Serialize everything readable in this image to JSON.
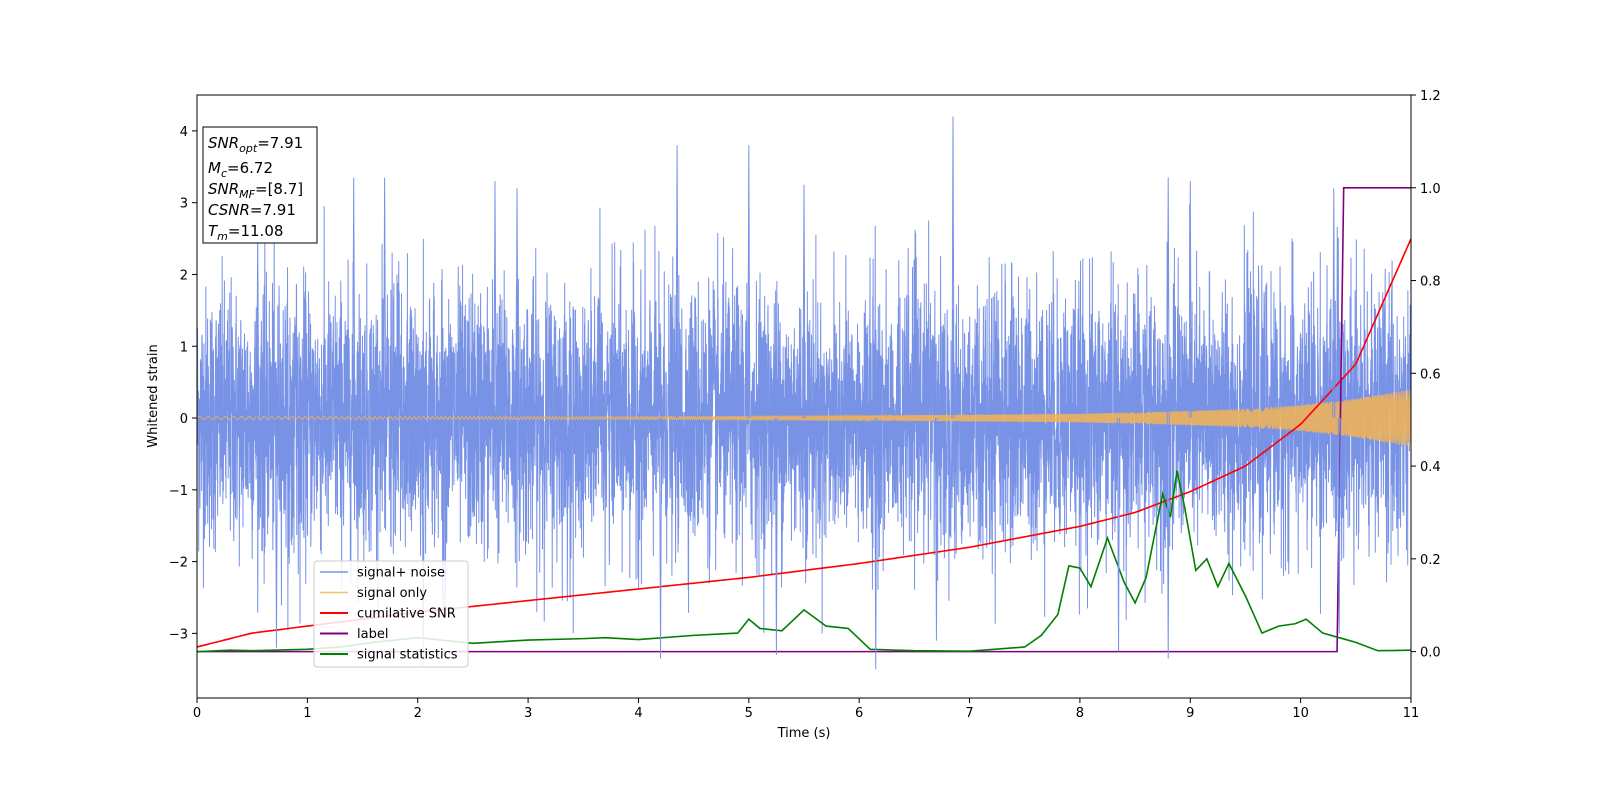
{
  "chart_data": {
    "type": "line",
    "xlabel": "Time (s)",
    "ylabel": "Whitened strain",
    "xlim": [
      0,
      11
    ],
    "ylim": [
      -3.9,
      4.5
    ],
    "y2lim": [
      -0.1,
      1.2
    ],
    "xticks": [
      0,
      1,
      2,
      3,
      4,
      5,
      6,
      7,
      8,
      9,
      10,
      11
    ],
    "yticks": [
      -3,
      -2,
      -1,
      0,
      1,
      2,
      3,
      4
    ],
    "y2ticks": [
      0.0,
      0.2,
      0.4,
      0.6,
      0.8,
      1.0,
      1.2
    ],
    "legend_position": "lower-left",
    "grid": false,
    "info_box": {
      "lines": [
        {
          "main": "SNR",
          "sub": "opt",
          "value": "=7.91"
        },
        {
          "main": "M",
          "sub": "c",
          "value": "=6.72"
        },
        {
          "main": "SNR",
          "sub": "MF",
          "value": "=[8.7]"
        },
        {
          "main": "CSNR",
          "sub": "",
          "value": "=7.91"
        },
        {
          "main": "T",
          "sub": "m",
          "value": "=11.08"
        }
      ]
    },
    "series": [
      {
        "name": "signal+ noise",
        "color": "#7892e6",
        "axis": "left",
        "description": "white noise, std ~0.9, range approx -3.5 to 4.2",
        "peaks": [
          [
            0.55,
            2.55
          ],
          [
            1.42,
            3.35
          ],
          [
            1.7,
            3.35
          ],
          [
            2.7,
            3.3
          ],
          [
            2.9,
            3.2
          ],
          [
            4.35,
            3.8
          ],
          [
            5.0,
            3.8
          ],
          [
            5.5,
            3.25
          ],
          [
            6.85,
            4.2
          ],
          [
            8.8,
            3.35
          ],
          [
            9.0,
            3.3
          ],
          [
            10.3,
            3.2
          ]
        ],
        "troughs": [
          [
            0.72,
            -3.2
          ],
          [
            2.05,
            -3.45
          ],
          [
            4.2,
            -3.35
          ],
          [
            5.25,
            -3.3
          ],
          [
            6.15,
            -3.5
          ],
          [
            6.7,
            -3.1
          ],
          [
            8.35,
            -3.25
          ],
          [
            8.8,
            -3.35
          ],
          [
            10.35,
            -3.0
          ]
        ]
      },
      {
        "name": "signal only",
        "color": "#f5b454",
        "axis": "left",
        "envelope": {
          "t": [
            0,
            4,
            6,
            8,
            9,
            9.5,
            10,
            10.5,
            11
          ],
          "amp": [
            0.02,
            0.02,
            0.03,
            0.06,
            0.1,
            0.13,
            0.18,
            0.27,
            0.4
          ]
        }
      },
      {
        "name": "cumilative SNR",
        "color": "#ff0000",
        "axis": "right",
        "x": [
          0,
          0.5,
          1,
          2,
          3,
          4,
          5,
          6,
          7,
          8,
          8.5,
          9,
          9.5,
          10,
          10.5,
          11
        ],
        "y": [
          0.01,
          0.04,
          0.055,
          0.085,
          0.11,
          0.135,
          0.16,
          0.19,
          0.225,
          0.27,
          0.3,
          0.345,
          0.4,
          0.49,
          0.62,
          0.89
        ]
      },
      {
        "name": "label",
        "color": "#800080",
        "axis": "right",
        "x": [
          0,
          10.33,
          10.39,
          11
        ],
        "y": [
          0.0,
          0.0,
          1.0,
          1.0
        ]
      },
      {
        "name": "signal statistics",
        "color": "#008000",
        "axis": "right",
        "x": [
          0,
          0.3,
          0.5,
          1.0,
          1.3,
          1.6,
          2.0,
          2.5,
          3.0,
          3.5,
          3.7,
          4.0,
          4.5,
          4.9,
          5.0,
          5.1,
          5.3,
          5.5,
          5.7,
          5.9,
          6.1,
          6.5,
          7.0,
          7.5,
          7.65,
          7.8,
          7.9,
          8.0,
          8.1,
          8.25,
          8.4,
          8.5,
          8.6,
          8.75,
          8.82,
          8.88,
          8.95,
          9.05,
          9.15,
          9.25,
          9.35,
          9.5,
          9.65,
          9.8,
          9.95,
          10.05,
          10.2,
          10.35,
          10.5,
          10.7,
          11.0
        ],
        "y": [
          0.0,
          0.003,
          0.002,
          0.005,
          0.01,
          0.02,
          0.03,
          0.018,
          0.025,
          0.028,
          0.03,
          0.026,
          0.035,
          0.04,
          0.07,
          0.05,
          0.045,
          0.09,
          0.055,
          0.05,
          0.005,
          0.002,
          0.001,
          0.01,
          0.035,
          0.08,
          0.185,
          0.18,
          0.14,
          0.245,
          0.15,
          0.105,
          0.16,
          0.34,
          0.29,
          0.39,
          0.31,
          0.175,
          0.2,
          0.14,
          0.19,
          0.12,
          0.04,
          0.055,
          0.06,
          0.07,
          0.04,
          0.03,
          0.02,
          0.002,
          0.003
        ]
      }
    ]
  }
}
